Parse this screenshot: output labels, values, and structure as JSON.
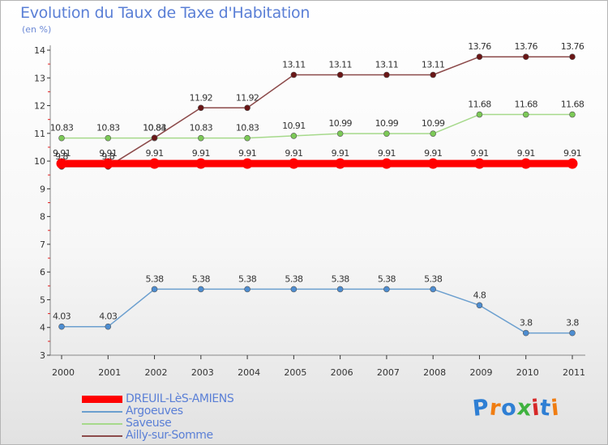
{
  "header": {
    "title": "Evolution du Taux de Taxe d'Habitation",
    "subtitle": "(en %)"
  },
  "logo": {
    "text": "Proxiti",
    "letters": [
      "P",
      "r",
      "o",
      "x",
      "i",
      "t",
      "i"
    ],
    "colors": [
      "#2f7fd4",
      "#f07d12",
      "#2f7fd4",
      "#3fb23f",
      "#d62828",
      "#2f7fd4",
      "#f07d12"
    ]
  },
  "chart_data": {
    "type": "line",
    "title": "Evolution du Taux de Taxe d'Habitation",
    "subtitle": "(en %)",
    "xlabel": "",
    "ylabel": "",
    "x": [
      "2000",
      "2001",
      "2002",
      "2003",
      "2004",
      "2005",
      "2006",
      "2007",
      "2008",
      "2009",
      "2010",
      "2011"
    ],
    "ylim": [
      3,
      14
    ],
    "yticks": [
      3,
      4,
      5,
      6,
      7,
      8,
      9,
      10,
      11,
      12,
      13,
      14
    ],
    "grid": false,
    "legend_position": "bottom-left",
    "series": [
      {
        "name": "DREUIL-LèS-AMIENS",
        "color": "#ff0000",
        "marker": "#ff0000",
        "width": 9,
        "values": [
          9.91,
          9.91,
          9.91,
          9.91,
          9.91,
          9.91,
          9.91,
          9.91,
          9.91,
          9.91,
          9.91,
          9.91
        ],
        "labels": [
          "9.91",
          "9.91",
          "9.91",
          "9.91",
          "9.91",
          "9.91",
          "9.91",
          "9.91",
          "9.91",
          "9.91",
          "9.91",
          "9.91"
        ]
      },
      {
        "name": "Argoeuves",
        "color": "#6b9fcf",
        "marker": "#4d8dd1",
        "width": 1.5,
        "values": [
          4.03,
          4.03,
          5.38,
          5.38,
          5.38,
          5.38,
          5.38,
          5.38,
          5.38,
          4.8,
          3.8,
          3.8
        ],
        "labels": [
          "4.03",
          "4.03",
          "5.38",
          "5.38",
          "5.38",
          "5.38",
          "5.38",
          "5.38",
          "5.38",
          "4.8",
          "3.8",
          "3.8"
        ]
      },
      {
        "name": "Saveuse",
        "color": "#a6d98b",
        "marker": "#7cc957",
        "width": 1.5,
        "values": [
          10.83,
          10.83,
          10.83,
          10.83,
          10.83,
          10.91,
          10.99,
          10.99,
          10.99,
          11.68,
          11.68,
          11.68
        ],
        "labels": [
          "10.83",
          "10.83",
          "10.83",
          "10.83",
          "10.83",
          "10.91",
          "10.99",
          "10.99",
          "10.99",
          "11.68",
          "11.68",
          "11.68"
        ]
      },
      {
        "name": "Ailly-sur-Somme",
        "color": "#8c4a4a",
        "marker": "#6a1616",
        "width": 1.5,
        "values": [
          9.8,
          9.8,
          10.84,
          11.92,
          11.92,
          13.11,
          13.11,
          13.11,
          13.11,
          13.76,
          13.76,
          13.76
        ],
        "labels": [
          "9.8",
          "9.8",
          "10.84",
          "11.92",
          "11.92",
          "13.11",
          "13.11",
          "13.11",
          "13.11",
          "13.76",
          "13.76",
          "13.76"
        ]
      }
    ]
  }
}
